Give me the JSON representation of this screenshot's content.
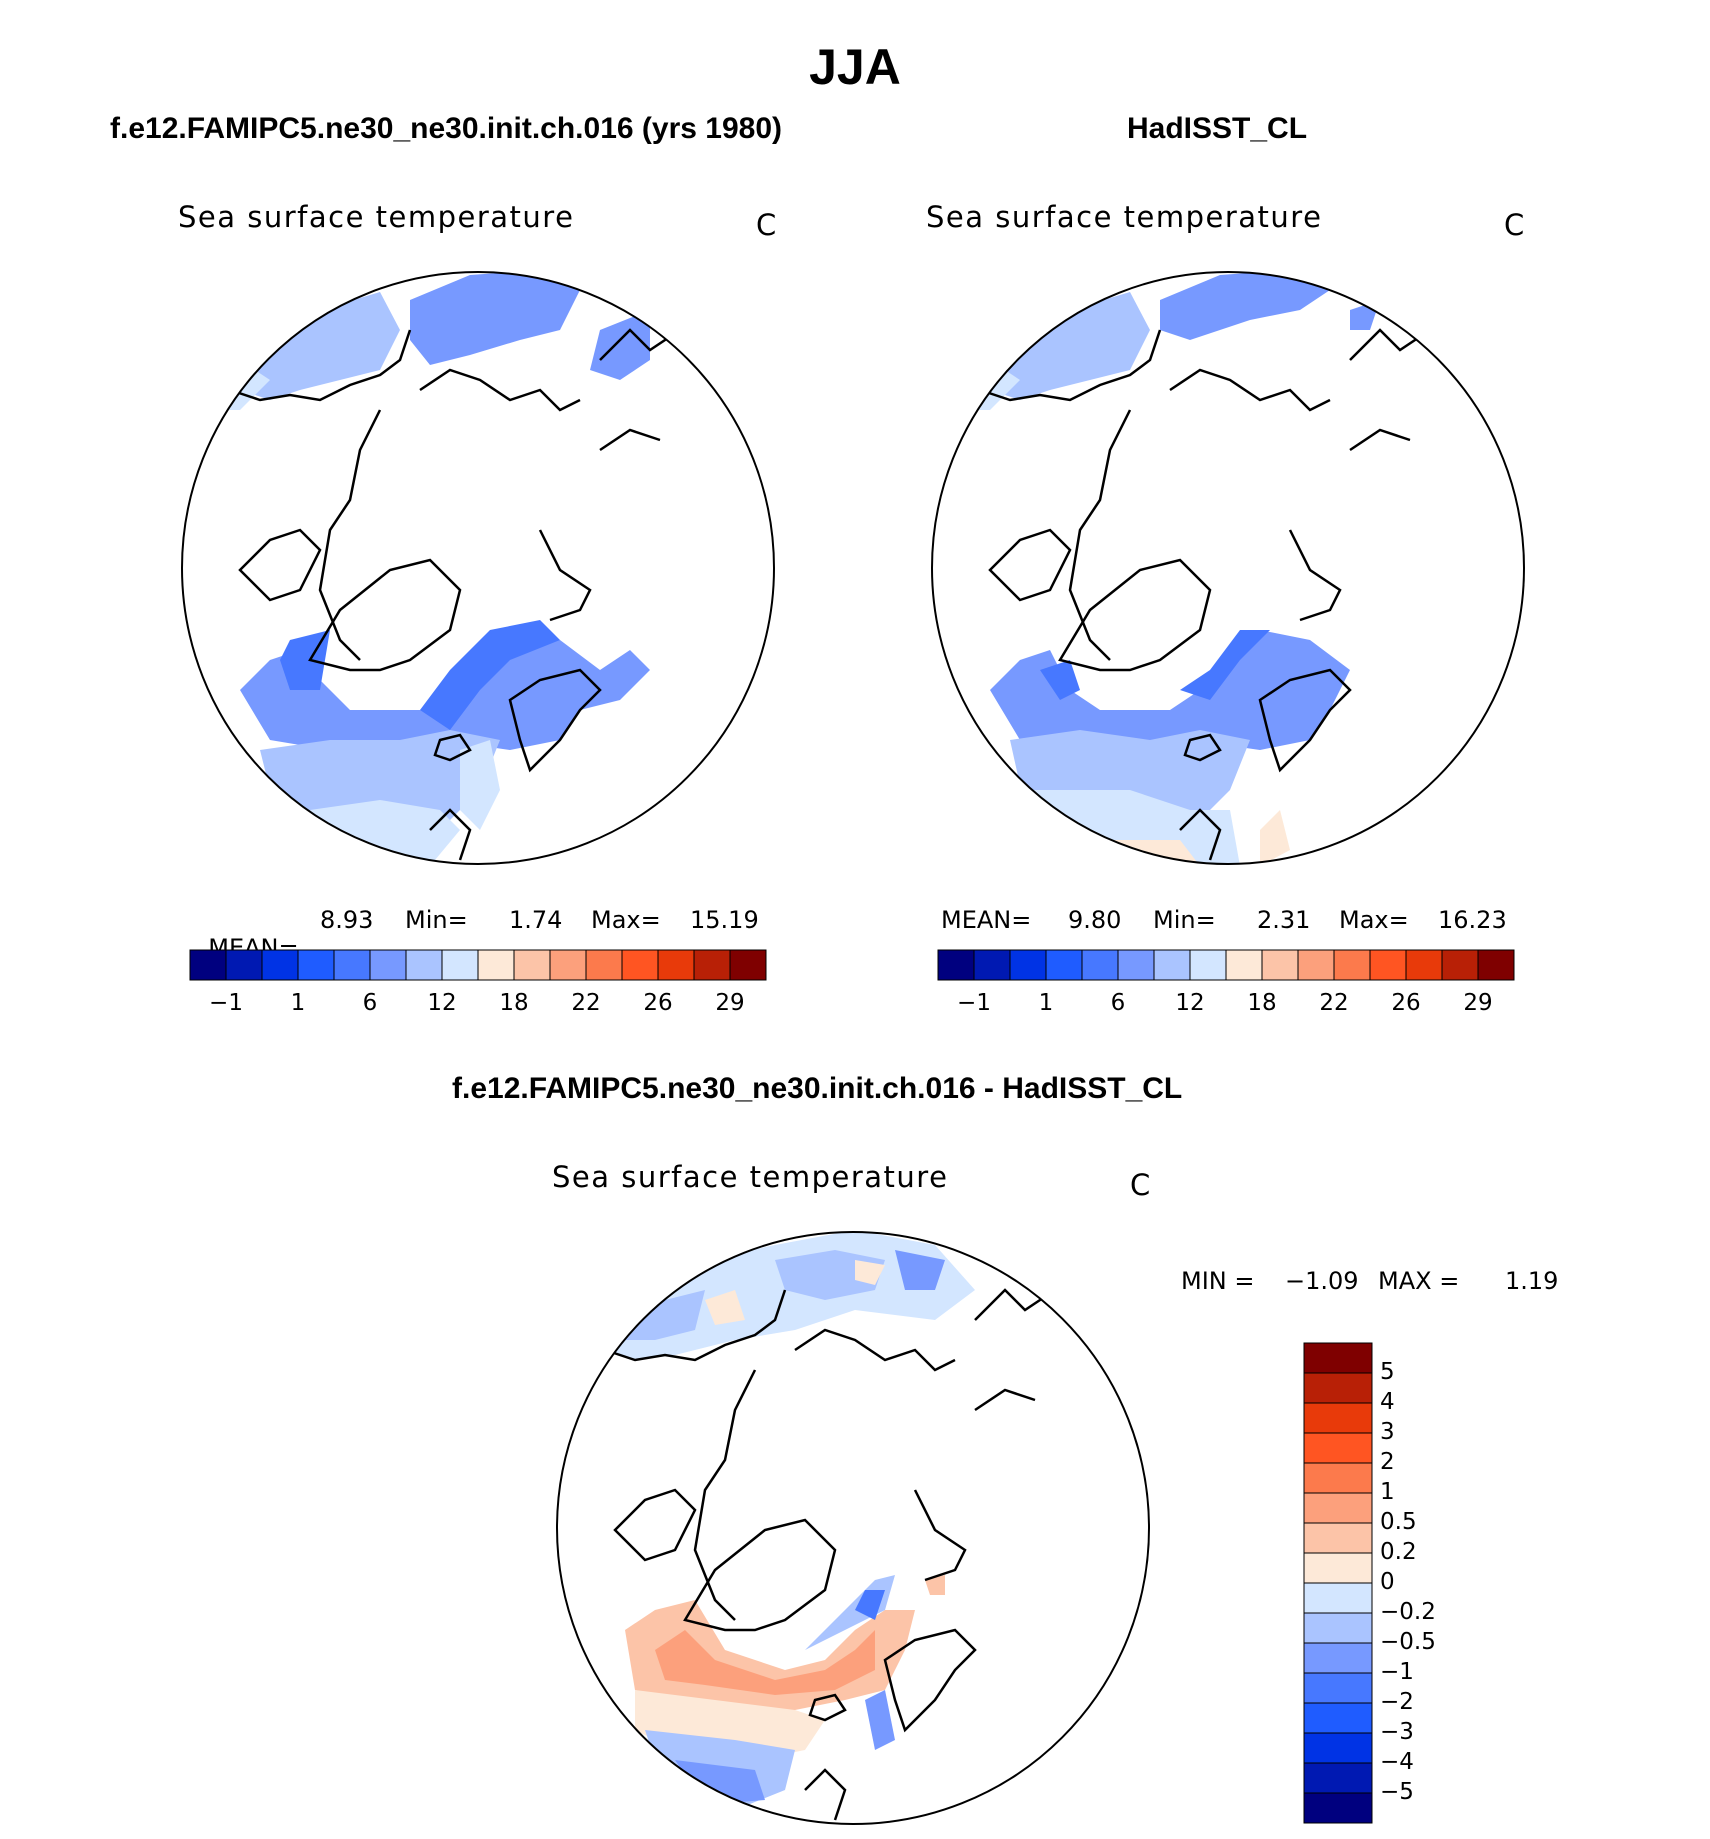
{
  "figure": {
    "season": "JJA",
    "variable_label": "Sea surface temperature",
    "units": "C"
  },
  "panels": {
    "model": {
      "title": "f.e12.FAMIPC5.ne30_ne30.init.ch.016 (yrs 1980)",
      "mean_label": "MEAN=",
      "mean": "8.93",
      "min_label": "Min=",
      "min": "1.74",
      "max_label": "Max=",
      "max": "15.19"
    },
    "obs": {
      "title": "HadISST_CL",
      "mean_label": "MEAN=",
      "mean": "9.80",
      "min_label": "Min=",
      "min": "2.31",
      "max_label": "Max=",
      "max": "16.23"
    },
    "diff": {
      "title": "f.e12.FAMIPC5.ne30_ne30.init.ch.016 - HadISST_CL",
      "min_label": "MIN =",
      "min": "−1.09",
      "max_label": "MAX =",
      "max": "1.19"
    }
  },
  "colorbars": {
    "absolute": {
      "colors": [
        "#00007f",
        "#0019b2",
        "#0033e5",
        "#1f5cff",
        "#4778ff",
        "#7799ff",
        "#aac4ff",
        "#d3e6ff",
        "#fde9d8",
        "#fcc4a8",
        "#fca07c",
        "#fc7a4c",
        "#ff5522",
        "#e83a0a",
        "#b82006",
        "#7f0000"
      ],
      "tick_labels": [
        "−1",
        "1",
        "6",
        "12",
        "18",
        "22",
        "26",
        "29"
      ]
    },
    "difference": {
      "colors_top_to_bottom": [
        "#7f0000",
        "#b82006",
        "#e83a0a",
        "#ff5522",
        "#fc7a4c",
        "#fca07c",
        "#fcc4a8",
        "#fde9d8",
        "#d3e6ff",
        "#aac4ff",
        "#7799ff",
        "#4778ff",
        "#1f5cff",
        "#0033e5",
        "#0019b2",
        "#00007f"
      ],
      "tick_labels_top_to_bottom": [
        "5",
        "4",
        "3",
        "2",
        "1",
        "0.5",
        "0.2",
        "0",
        "−0.2",
        "−0.5",
        "−1",
        "−2",
        "−3",
        "−4",
        "−5"
      ]
    }
  }
}
